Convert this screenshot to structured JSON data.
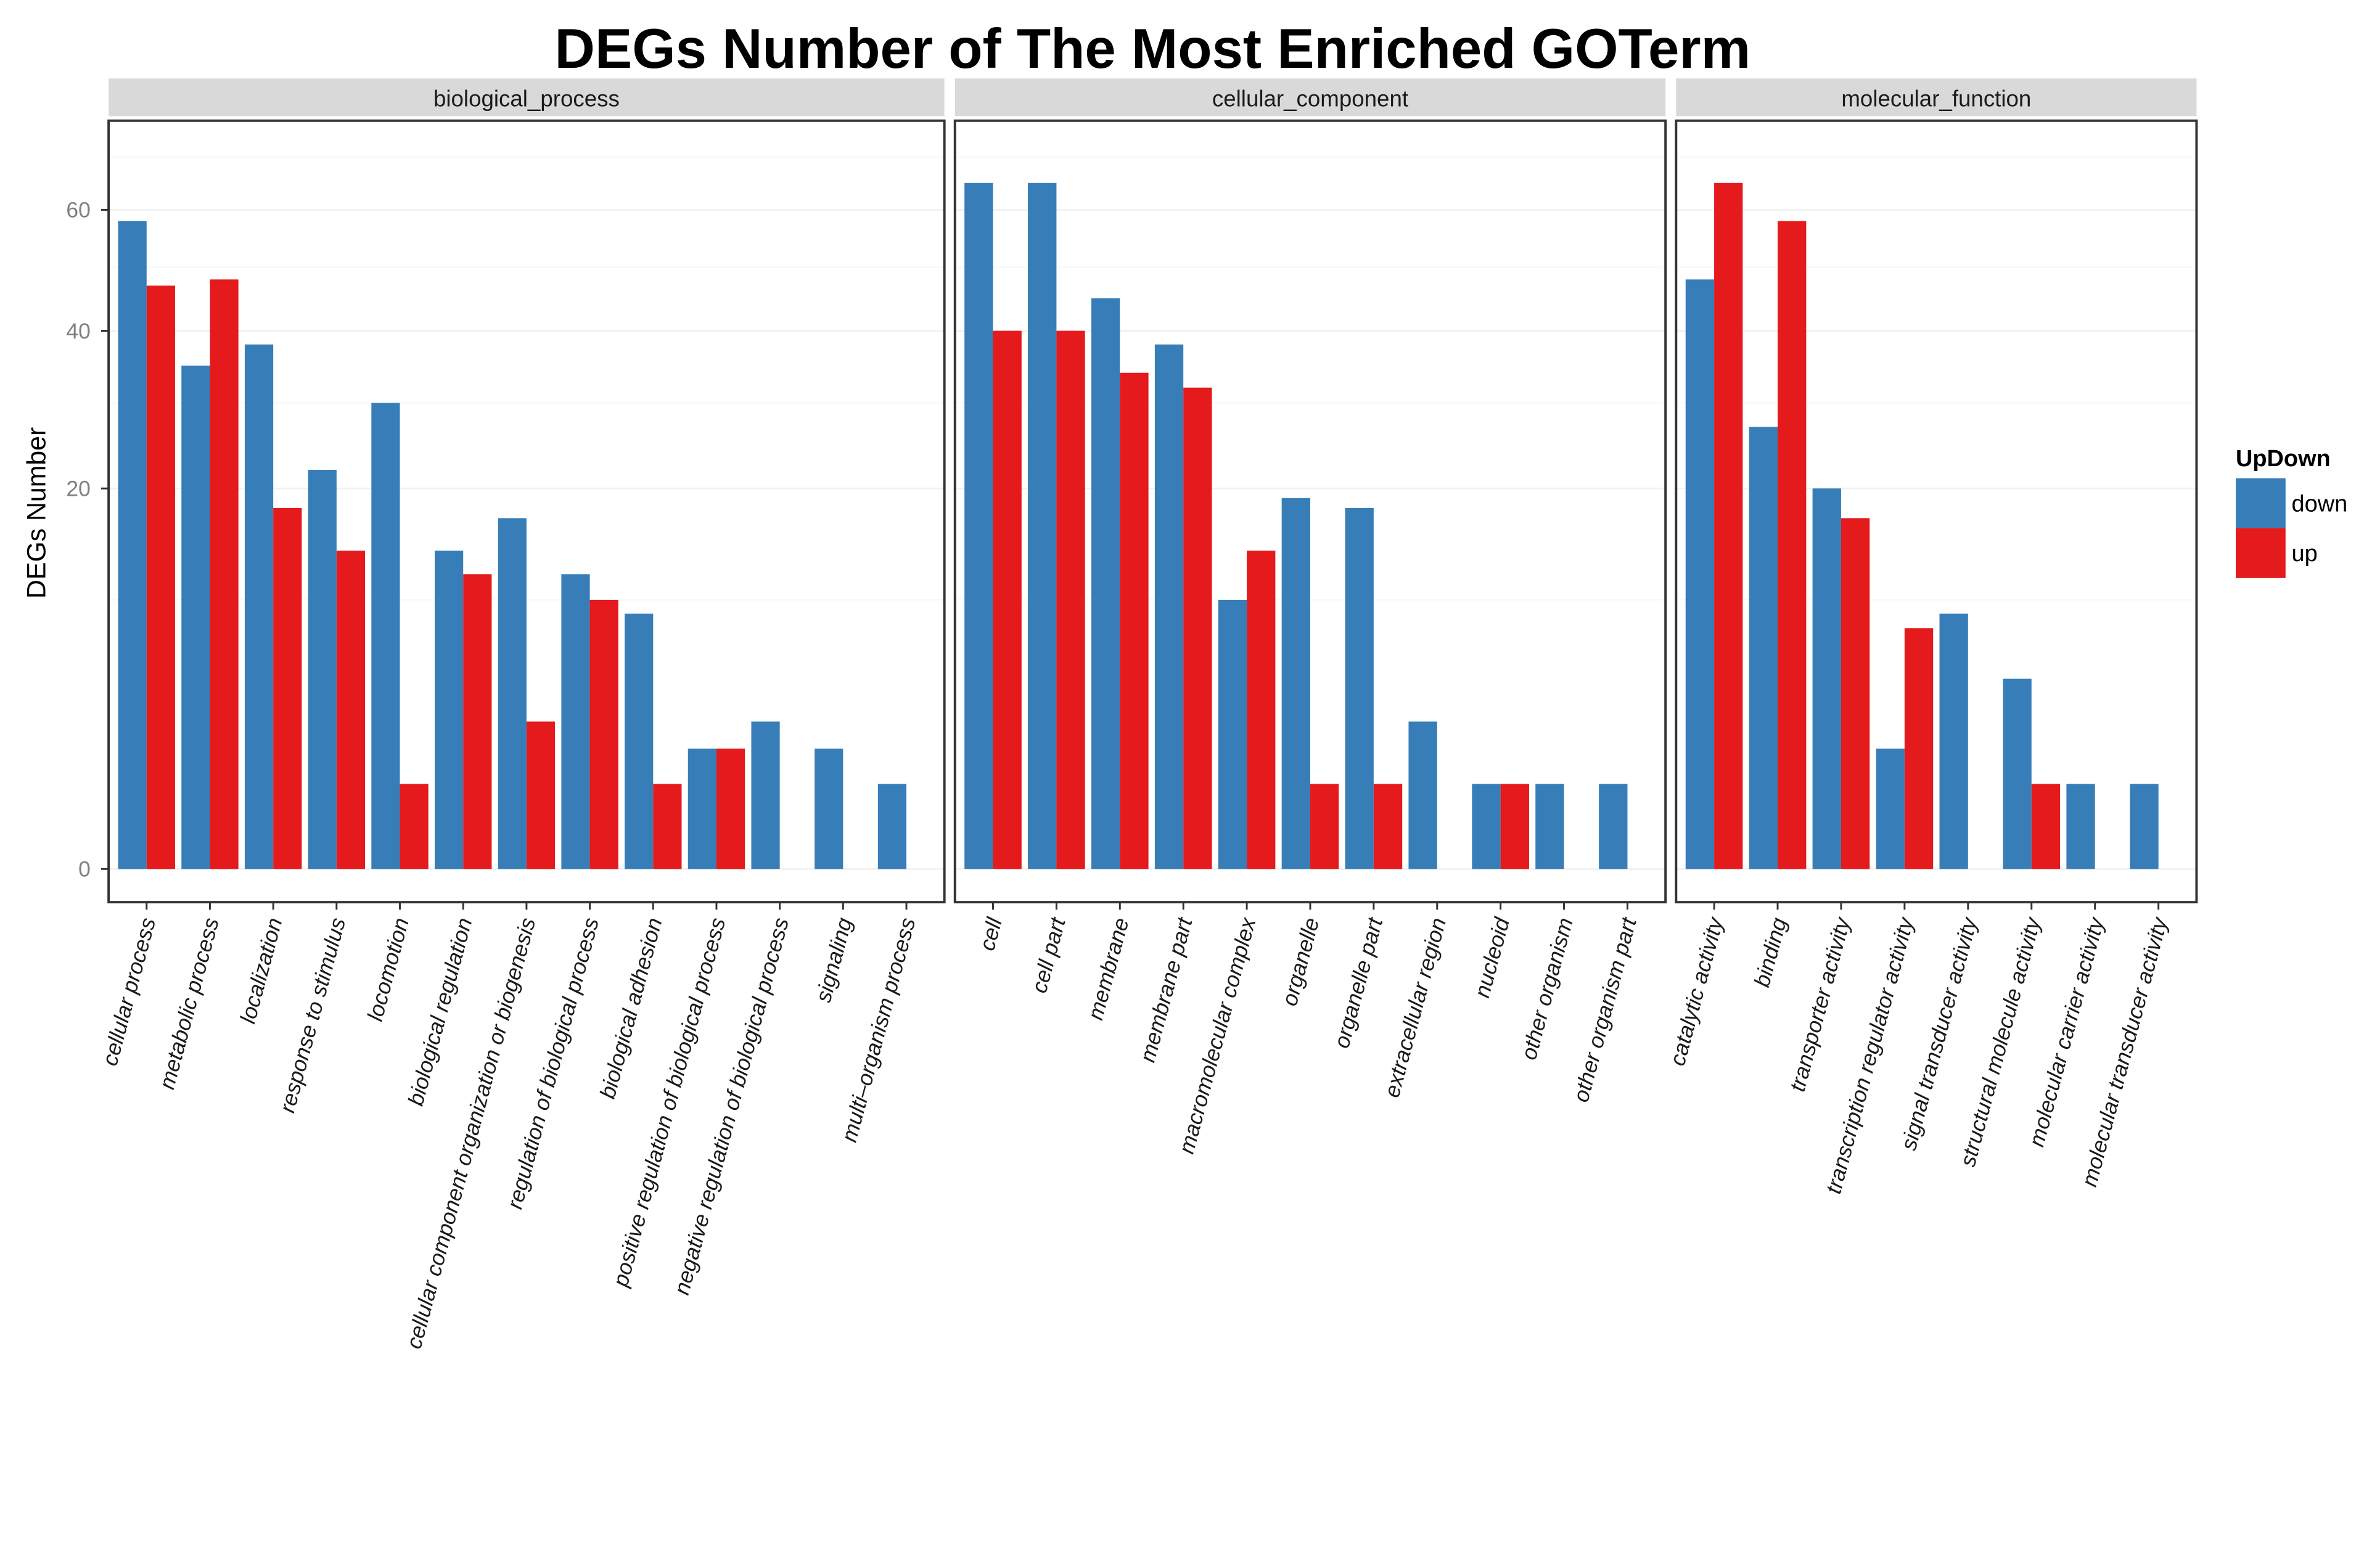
{
  "chart_data": {
    "type": "bar",
    "title": "DEGs Number of The Most Enriched GOTerm",
    "xlabel": "",
    "ylabel": "DEGs Number",
    "y_scale": "sqrt",
    "ylim": [
      0,
      70
    ],
    "y_ticks": [
      0,
      20,
      40,
      60
    ],
    "grid": true,
    "legend": {
      "title": "UpDown",
      "placement": "right",
      "entries": [
        {
          "label": "down",
          "color": "#377EB8"
        },
        {
          "label": "up",
          "color": "#E41A1C"
        }
      ]
    },
    "series": [
      {
        "name": "down",
        "color": "#377EB8"
      },
      {
        "name": "up",
        "color": "#E41A1C"
      }
    ],
    "panels": [
      {
        "title": "biological_process",
        "categories": [
          "cellular process",
          "metabolic process",
          "localization",
          "response to stimulus",
          "locomotion",
          "biological regulation",
          "cellular component organization or biogenesis",
          "regulation of biological process",
          "biological adhesion",
          "positive regulation of biological process",
          "negative regulation of biological process",
          "signaling",
          "multi–organism process"
        ],
        "down": [
          58,
          35,
          38,
          22,
          30,
          14,
          17,
          12,
          9,
          2,
          3,
          2,
          1
        ],
        "up": [
          47,
          48,
          18,
          14,
          1,
          12,
          3,
          10,
          1,
          2,
          0,
          0,
          0
        ]
      },
      {
        "title": "cellular_component",
        "categories": [
          "cell",
          "cell part",
          "membrane",
          "membrane part",
          "macromolecular complex",
          "organelle",
          "organelle part",
          "extracellular region",
          "nucleoid",
          "other organism",
          "other organism part"
        ],
        "down": [
          65,
          65,
          45,
          38,
          10,
          19,
          18,
          3,
          1,
          1,
          1
        ],
        "up": [
          40,
          40,
          34,
          32,
          14,
          1,
          1,
          0,
          1,
          0,
          0
        ]
      },
      {
        "title": "molecular_function",
        "categories": [
          "catalytic activity",
          "binding",
          "transporter activity",
          "transcription regulator activity",
          "signal transducer activity",
          "structural molecule activity",
          "molecular carrier activity",
          "molecular transducer activity"
        ],
        "down": [
          48,
          27,
          20,
          2,
          9,
          5,
          1,
          1
        ],
        "up": [
          65,
          58,
          17,
          8,
          0,
          1,
          0,
          0
        ]
      }
    ]
  }
}
